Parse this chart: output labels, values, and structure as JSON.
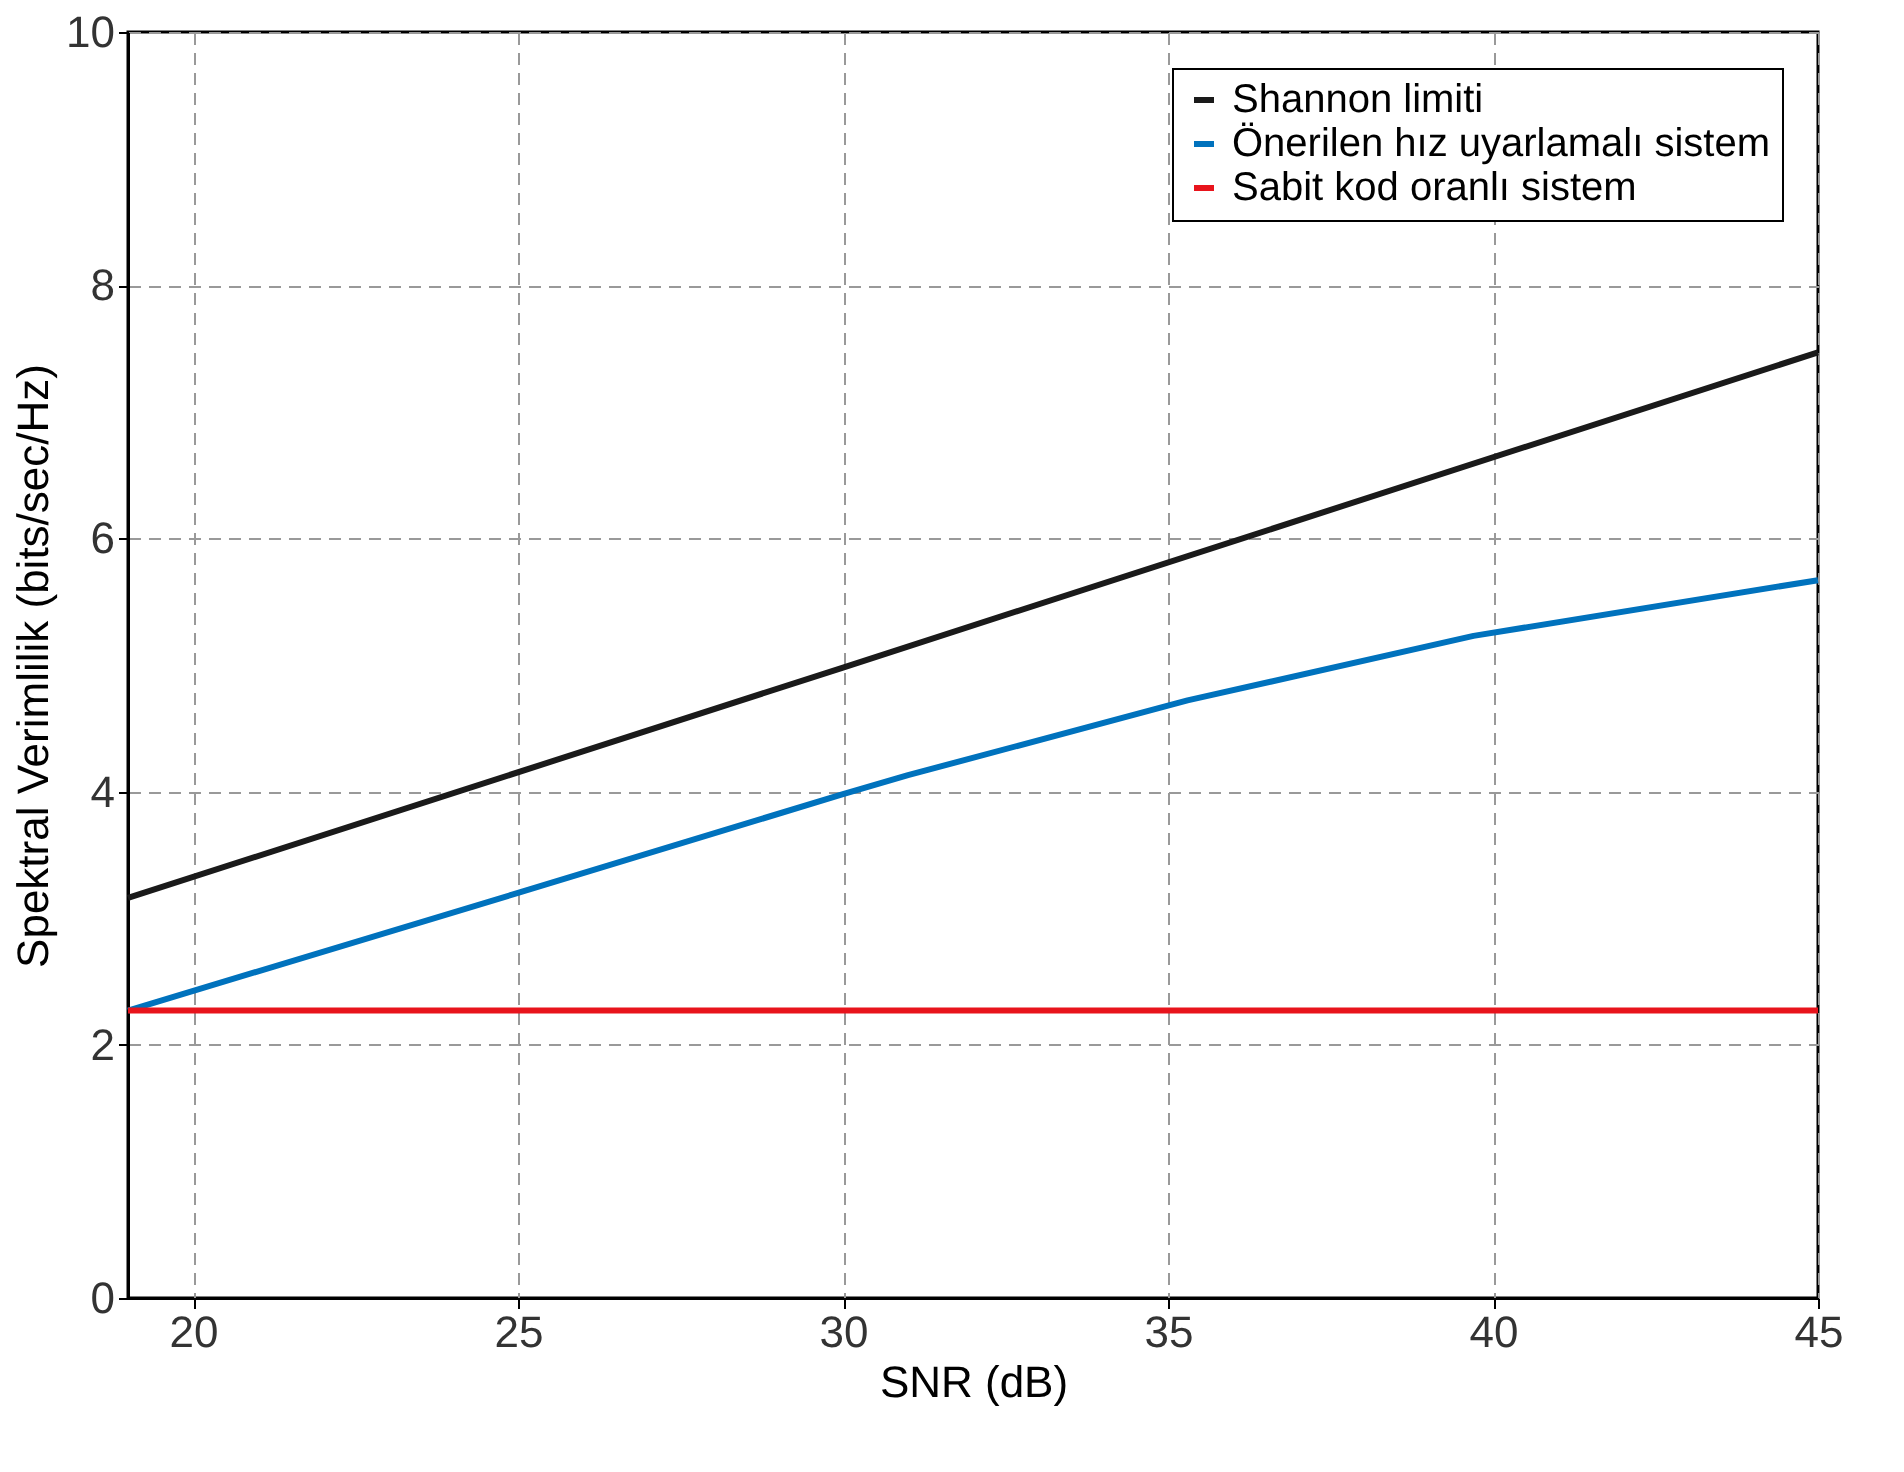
{
  "chart_data": {
    "type": "line",
    "xlabel": "SNR (dB)",
    "ylabel": "Spektral Verimlilik (bits/sec/Hz)",
    "series": [
      {
        "name": "Shannon limiti",
        "color": "#1a1a1a",
        "x": [
          19,
          30,
          45
        ],
        "values": [
          3.16,
          4.98,
          7.47
        ]
      },
      {
        "name": "Önerilen hız uyarlamalı sistem",
        "color": "#0072bd",
        "x": [
          19,
          25,
          30,
          31,
          35.3,
          39.7,
          45
        ],
        "values": [
          2.27,
          3.2,
          3.98,
          4.13,
          4.72,
          5.23,
          5.67
        ]
      },
      {
        "name": "Sabit kod oranlı sistem",
        "color": "#e8141c",
        "x": [
          19,
          45
        ],
        "values": [
          2.27,
          2.27
        ]
      }
    ],
    "xlim": [
      19,
      45
    ],
    "xticks": [
      20,
      25,
      30,
      35,
      40,
      45
    ],
    "ylim": [
      0,
      10
    ],
    "yticks": [
      0,
      2,
      4,
      6,
      8,
      10
    ],
    "grid": true,
    "legend": "top right",
    "marker": "none",
    "line_style": "solid"
  }
}
